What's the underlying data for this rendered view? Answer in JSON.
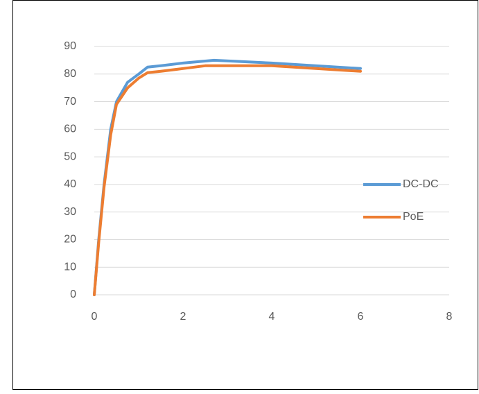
{
  "chart_data": {
    "type": "line",
    "series": [
      {
        "name": "DC-DC",
        "color": "#5b9bd5",
        "x": [
          0,
          0.1,
          0.22,
          0.37,
          0.5,
          0.75,
          1,
          1.2,
          1.5,
          2,
          2.7,
          4,
          6
        ],
        "values": [
          0,
          20,
          40,
          60,
          70,
          77,
          80,
          82.5,
          83,
          84,
          85,
          84,
          82
        ]
      },
      {
        "name": "PoE",
        "color": "#ed7d31",
        "x": [
          0,
          0.1,
          0.22,
          0.37,
          0.5,
          0.75,
          1,
          1.2,
          1.5,
          2,
          2.5,
          4,
          6
        ],
        "values": [
          0,
          19,
          39,
          58,
          69,
          75,
          78.5,
          80.5,
          81,
          82,
          83,
          83,
          81
        ]
      }
    ],
    "xlim": [
      0,
      8
    ],
    "xticks": [
      0,
      2,
      4,
      6,
      8
    ],
    "ylim": [
      0,
      90
    ],
    "yticks": [
      0,
      10,
      20,
      30,
      40,
      50,
      60,
      70,
      80,
      90
    ],
    "grid": true,
    "legend": "right"
  }
}
